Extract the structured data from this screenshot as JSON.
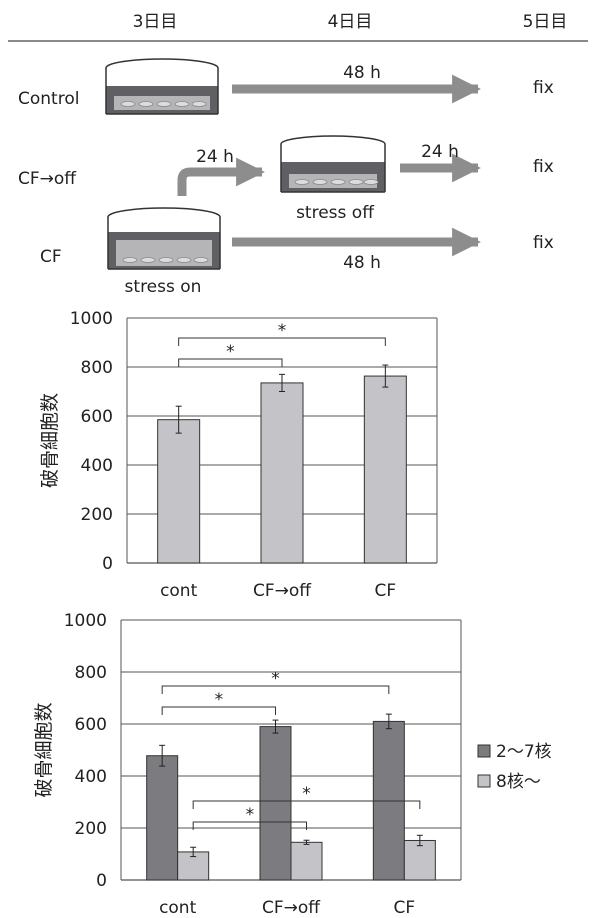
{
  "header": {
    "days": [
      "3日目",
      "4日目",
      "5日目"
    ]
  },
  "protocol": {
    "rows": [
      {
        "name": "Control",
        "arrow1": "48 h",
        "end": "fix"
      },
      {
        "name": "CF→off",
        "arrow1": "24 h",
        "arrow2": "24 h",
        "end": "fix",
        "dish_caption": "stress off"
      },
      {
        "name": "CF",
        "arrow1": "48 h",
        "end": "fix",
        "dish_caption": "stress on"
      }
    ]
  },
  "colors": {
    "bar_light": "#c4c4c8",
    "bar_dark": "#7b7b80",
    "arrow": "#8d8d8d",
    "dish_dark": "#5f5f64",
    "dish_light": "#b5b5b8"
  },
  "chart_data": [
    {
      "type": "bar",
      "categories": [
        "cont",
        "CF→off",
        "CF"
      ],
      "values": [
        585,
        735,
        763
      ],
      "errors": [
        55,
        35,
        45
      ],
      "ylabel": "破骨細胞数",
      "ylim": [
        0,
        1000
      ],
      "yticks": [
        "0",
        "200",
        "400",
        "600",
        "800",
        "1000"
      ],
      "grid": true,
      "significance": [
        {
          "from": 0,
          "to": 1,
          "label": "*"
        },
        {
          "from": 0,
          "to": 2,
          "label": "*"
        }
      ]
    },
    {
      "type": "bar",
      "categories": [
        "cont",
        "CF→off",
        "CF"
      ],
      "series": [
        {
          "name": "2〜7核",
          "values": [
            478,
            590,
            610
          ],
          "errors": [
            40,
            25,
            28
          ]
        },
        {
          "name": "8核〜",
          "values": [
            108,
            145,
            152
          ],
          "errors": [
            18,
            8,
            20
          ]
        }
      ],
      "ylabel": "破骨細胞数",
      "ylim": [
        0,
        1000
      ],
      "yticks": [
        "0",
        "200",
        "400",
        "600",
        "800",
        "1000"
      ],
      "grid": true,
      "legend": "right",
      "significance": [
        {
          "series": 0,
          "from": 0,
          "to": 1,
          "label": "*"
        },
        {
          "series": 0,
          "from": 0,
          "to": 2,
          "label": "*"
        },
        {
          "series": 1,
          "from": 0,
          "to": 1,
          "label": "*"
        },
        {
          "series": 1,
          "from": 0,
          "to": 2,
          "label": "*"
        }
      ]
    }
  ]
}
